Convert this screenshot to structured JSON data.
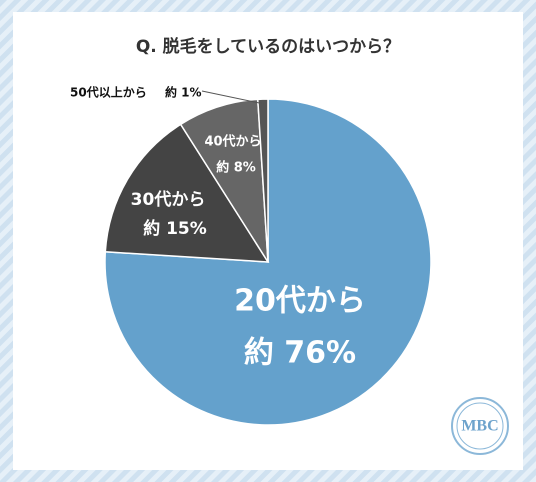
{
  "chart_data": {
    "type": "pie",
    "title": "Q. 脱毛をしているのはいつから？",
    "categories": [
      "20代から",
      "30代から",
      "40代から",
      "50代以上から"
    ],
    "values": [
      76,
      15,
      8,
      1
    ],
    "value_labels": [
      "約 76%",
      "約 15%",
      "約 8%",
      "約 1%"
    ],
    "colors": [
      "#64a1cc",
      "#444444",
      "#666666",
      "#555555"
    ]
  },
  "logo": "MBC"
}
